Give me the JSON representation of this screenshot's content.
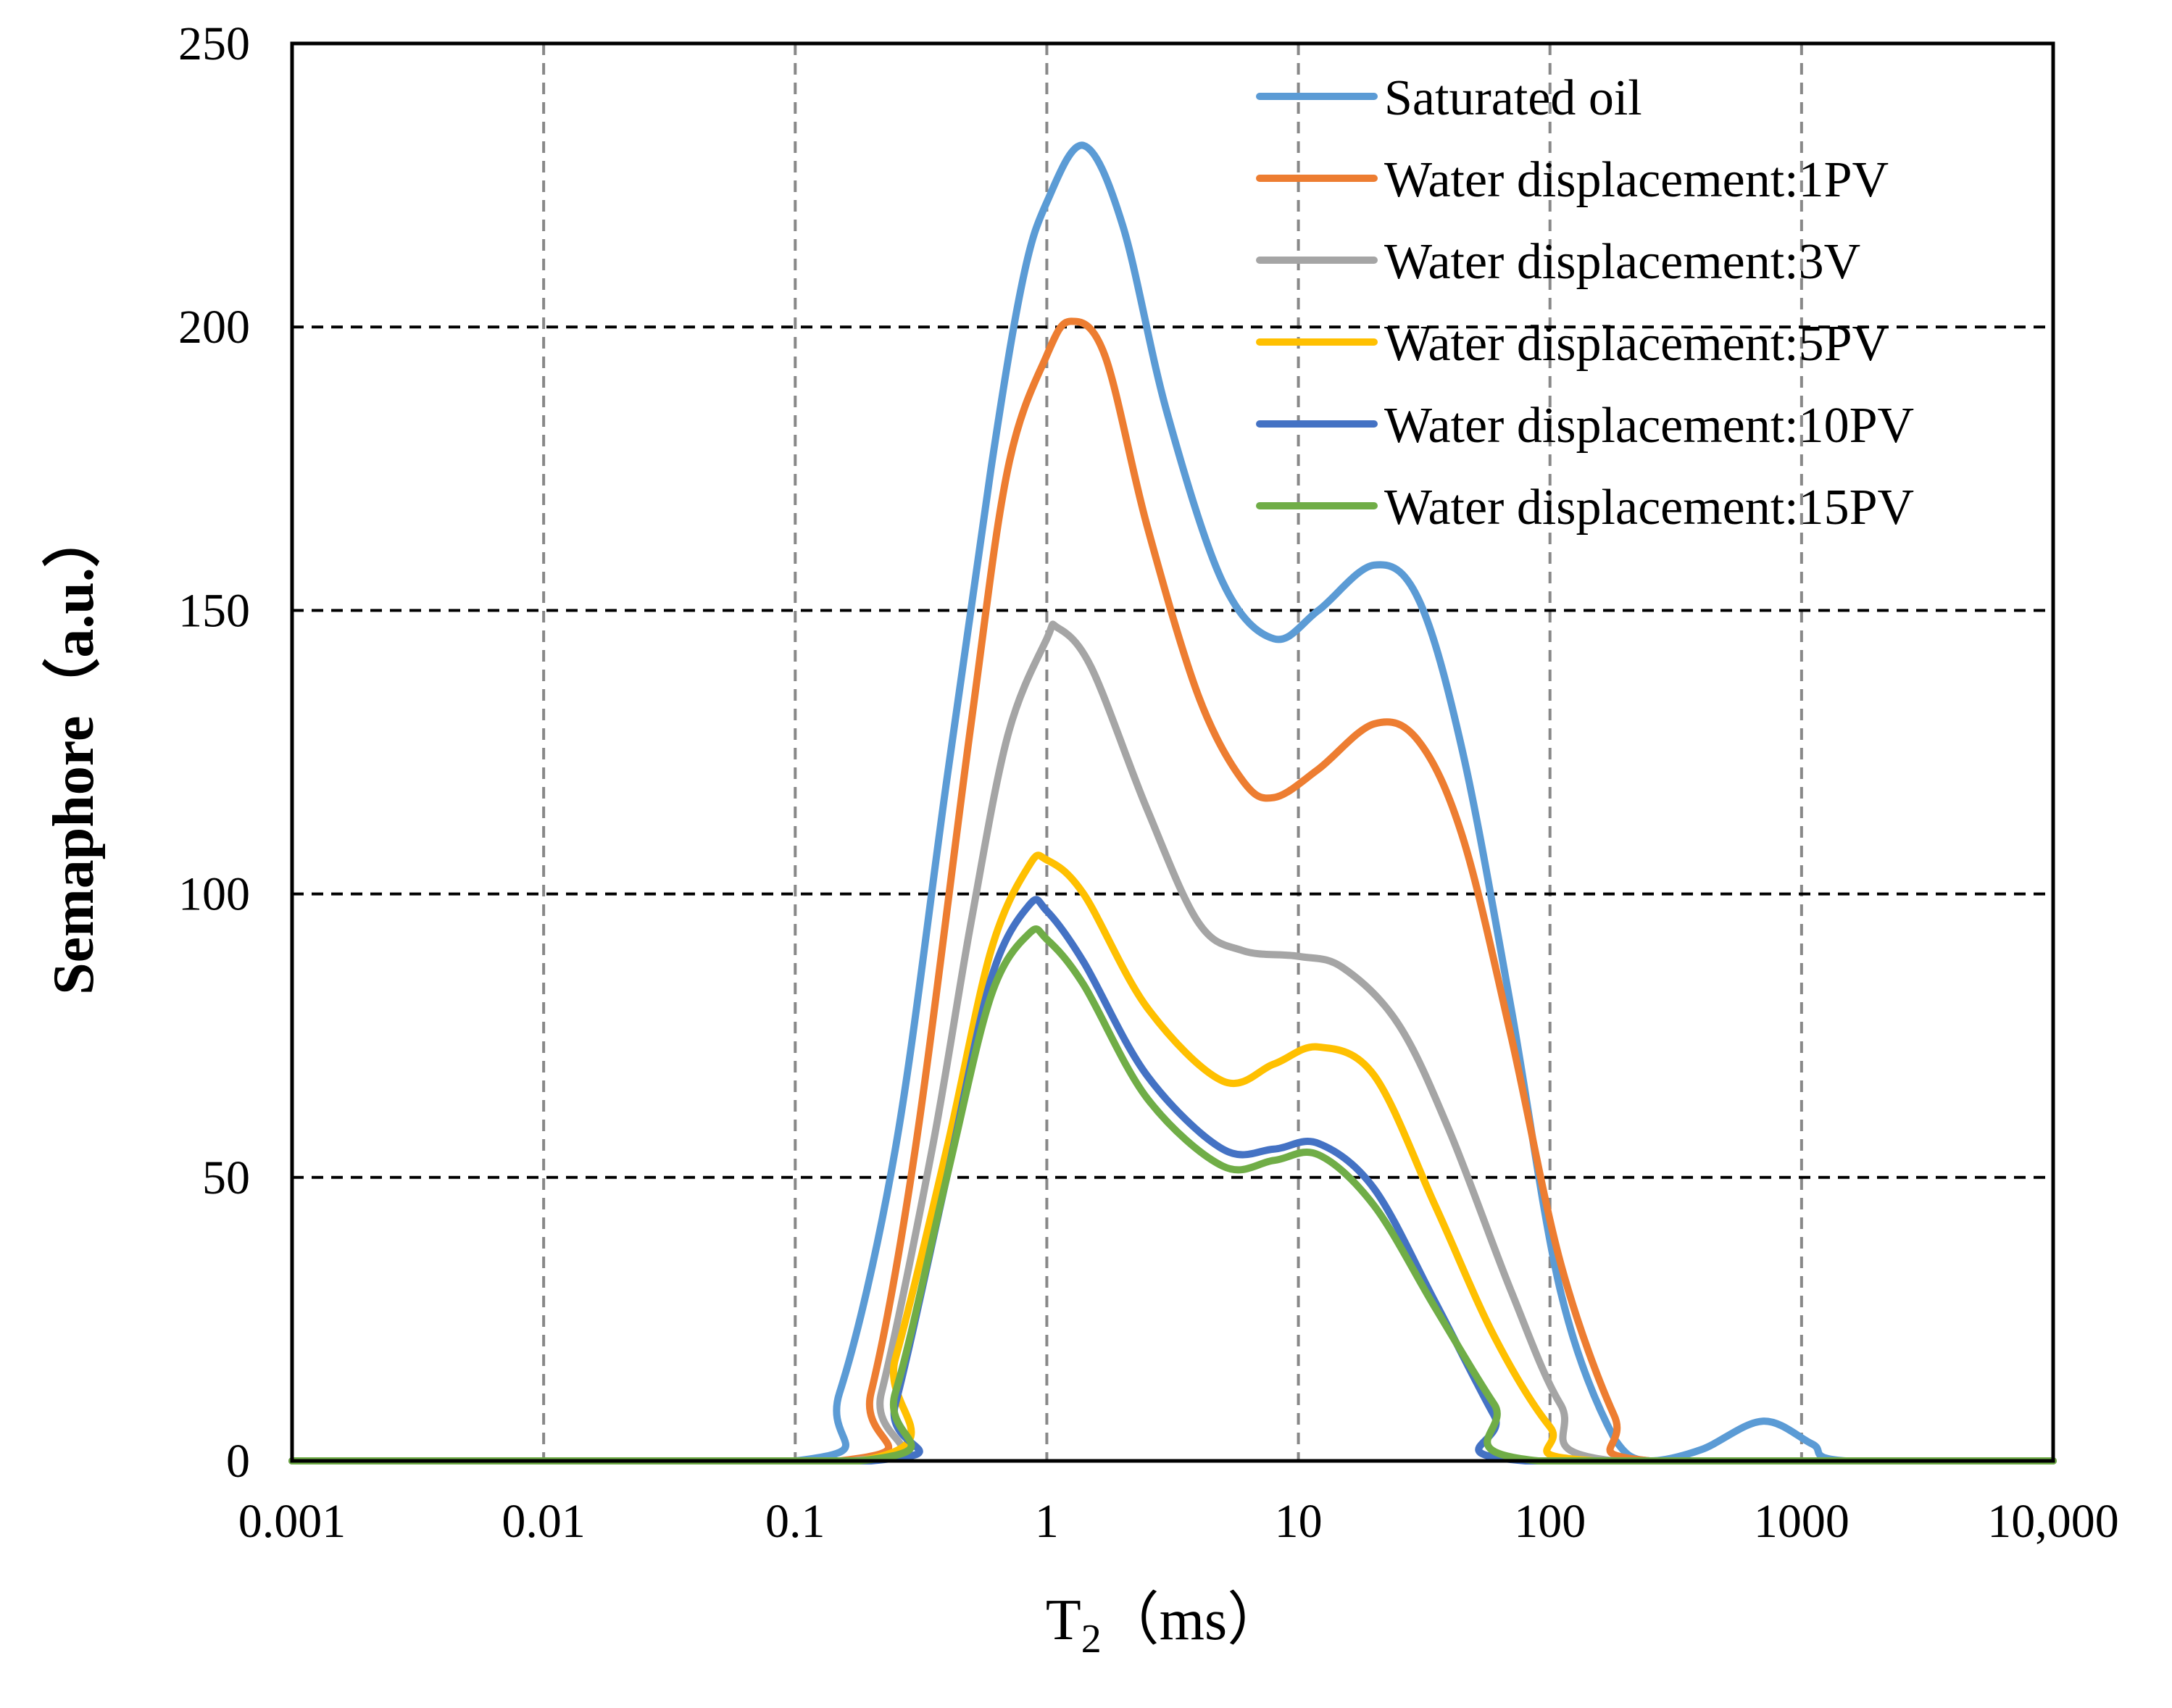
{
  "chart_data": {
    "type": "line",
    "title": "",
    "xlabel": "T",
    "xlabel_sub": "2",
    "xlabel_unit": "（ms）",
    "ylabel": "Semaphore（a.u.）",
    "xscale": "log",
    "xlim": [
      0.001,
      10000
    ],
    "ylim": [
      0,
      250
    ],
    "x_ticks": [
      0.001,
      0.01,
      0.1,
      1,
      10,
      100,
      1000,
      10000
    ],
    "x_tick_labels": [
      "0.001",
      "0.01",
      "0.1",
      "1",
      "10",
      "100",
      "1000",
      "10,000"
    ],
    "y_ticks": [
      0,
      50,
      100,
      150,
      200,
      250
    ],
    "y_tick_labels": [
      "0",
      "50",
      "100",
      "150",
      "200",
      "250"
    ],
    "grid": "dashed",
    "legend_position": "top-right",
    "series": [
      {
        "name": "Saturated oil",
        "color": "#5b9bd5",
        "points": [
          [
            0.001,
            0
          ],
          [
            0.1,
            0
          ],
          [
            0.15,
            12
          ],
          [
            0.25,
            55
          ],
          [
            0.4,
            120
          ],
          [
            0.6,
            175
          ],
          [
            0.8,
            208
          ],
          [
            1,
            222
          ],
          [
            1.4,
            232
          ],
          [
            2,
            218
          ],
          [
            3,
            185
          ],
          [
            5,
            155
          ],
          [
            8,
            145
          ],
          [
            12,
            150
          ],
          [
            20,
            158
          ],
          [
            30,
            152
          ],
          [
            45,
            125
          ],
          [
            70,
            80
          ],
          [
            110,
            30
          ],
          [
            180,
            4
          ],
          [
            250,
            0
          ],
          [
            400,
            2
          ],
          [
            700,
            7
          ],
          [
            1100,
            3
          ],
          [
            1500,
            0
          ],
          [
            10000,
            0
          ]
        ]
      },
      {
        "name": "Water displacement:1PV",
        "color": "#ed7d31",
        "points": [
          [
            0.001,
            0
          ],
          [
            0.15,
            0
          ],
          [
            0.2,
            12
          ],
          [
            0.3,
            55
          ],
          [
            0.5,
            130
          ],
          [
            0.7,
            175
          ],
          [
            1,
            195
          ],
          [
            1.25,
            201
          ],
          [
            1.7,
            195
          ],
          [
            2.5,
            165
          ],
          [
            4,
            135
          ],
          [
            6,
            120
          ],
          [
            8,
            117
          ],
          [
            12,
            122
          ],
          [
            20,
            130
          ],
          [
            30,
            127
          ],
          [
            45,
            110
          ],
          [
            70,
            75
          ],
          [
            110,
            35
          ],
          [
            180,
            8
          ],
          [
            250,
            0
          ],
          [
            10000,
            0
          ]
        ]
      },
      {
        "name": "Water displacement:3V",
        "color": "#a5a5a5",
        "points": [
          [
            0.001,
            0
          ],
          [
            0.17,
            0
          ],
          [
            0.22,
            12
          ],
          [
            0.35,
            55
          ],
          [
            0.5,
            95
          ],
          [
            0.7,
            128
          ],
          [
            1,
            145
          ],
          [
            1.1,
            147
          ],
          [
            1.5,
            140
          ],
          [
            2.5,
            115
          ],
          [
            4,
            95
          ],
          [
            6,
            90
          ],
          [
            10,
            89
          ],
          [
            15,
            87
          ],
          [
            25,
            77
          ],
          [
            40,
            58
          ],
          [
            70,
            30
          ],
          [
            110,
            10
          ],
          [
            180,
            0
          ],
          [
            10000,
            0
          ]
        ]
      },
      {
        "name": "Water displacement:5PV",
        "color": "#ffc000",
        "points": [
          [
            0.001,
            0
          ],
          [
            0.18,
            0
          ],
          [
            0.25,
            18
          ],
          [
            0.4,
            55
          ],
          [
            0.6,
            90
          ],
          [
            0.85,
            105
          ],
          [
            1,
            106
          ],
          [
            1.4,
            100
          ],
          [
            2.5,
            80
          ],
          [
            5,
            67
          ],
          [
            8,
            70
          ],
          [
            12,
            73
          ],
          [
            20,
            68
          ],
          [
            35,
            45
          ],
          [
            60,
            22
          ],
          [
            100,
            6
          ],
          [
            150,
            0
          ],
          [
            10000,
            0
          ]
        ]
      },
      {
        "name": "Water displacement:10PV",
        "color": "#4472c4",
        "points": [
          [
            0.001,
            0
          ],
          [
            0.2,
            0
          ],
          [
            0.25,
            10
          ],
          [
            0.4,
            50
          ],
          [
            0.6,
            85
          ],
          [
            0.85,
            98
          ],
          [
            1,
            97
          ],
          [
            1.4,
            88
          ],
          [
            2.5,
            68
          ],
          [
            5,
            55
          ],
          [
            8,
            55
          ],
          [
            12,
            56
          ],
          [
            20,
            48
          ],
          [
            35,
            28
          ],
          [
            60,
            8
          ],
          [
            80,
            0
          ],
          [
            10000,
            0
          ]
        ]
      },
      {
        "name": "Water displacement:15PV",
        "color": "#70ad47",
        "points": [
          [
            0.001,
            0
          ],
          [
            0.18,
            0
          ],
          [
            0.25,
            12
          ],
          [
            0.4,
            50
          ],
          [
            0.6,
            82
          ],
          [
            0.85,
            93
          ],
          [
            1,
            92
          ],
          [
            1.4,
            84
          ],
          [
            2.5,
            64
          ],
          [
            5,
            52
          ],
          [
            8,
            53
          ],
          [
            12,
            54
          ],
          [
            20,
            45
          ],
          [
            35,
            27
          ],
          [
            60,
            10
          ],
          [
            90,
            0
          ],
          [
            10000,
            0
          ]
        ]
      }
    ]
  }
}
